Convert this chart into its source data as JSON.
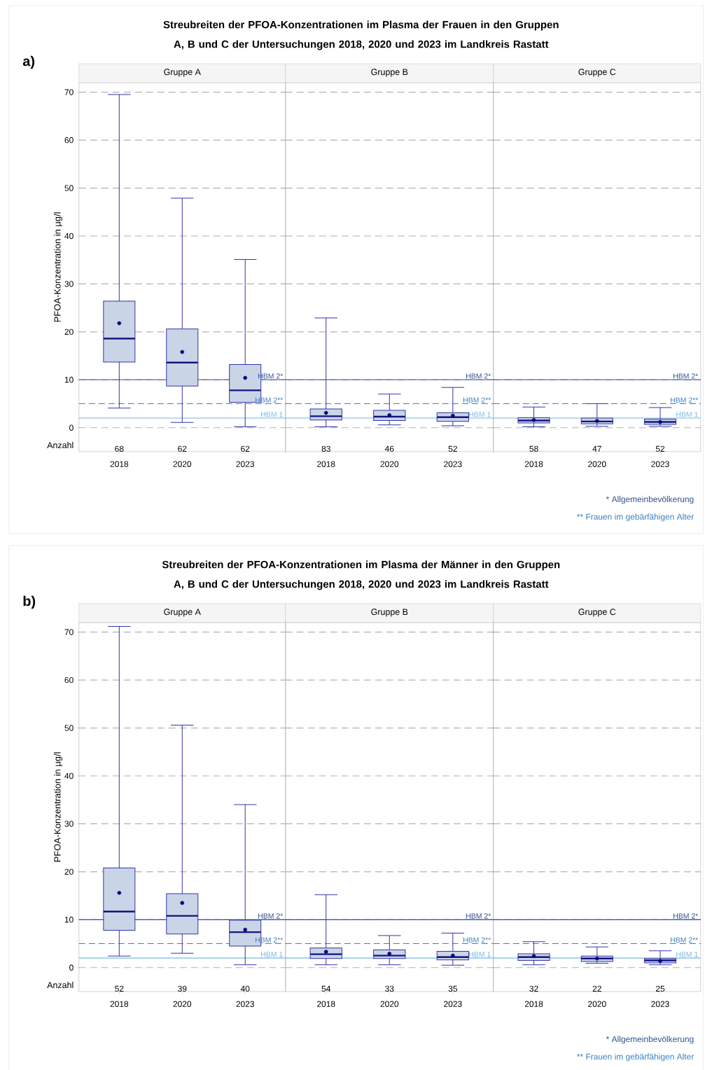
{
  "chart_data": [
    {
      "type": "box",
      "title": "Streubreiten der PFOA-Konzentrationen im Plasma der Frauen in den Gruppen A, B und C der Untersuchungen 2018, 2020 und 2023 im Landkreis Rastatt",
      "subtitle": "Gruppe A",
      "ylabel": "PFOA-Konzentration in µg/l",
      "categories": [
        "2018",
        "2020",
        "2023"
      ],
      "ylim": [
        -5,
        72
      ],
      "yticks": [
        0,
        10,
        20,
        30,
        40,
        50,
        60,
        70
      ],
      "grid": "y",
      "series": [
        {
          "color": "#3535a8",
          "boxes": [
            {
              "low": 4.1,
              "q1": 13.7,
              "median": 18.6,
              "q3": 26.4,
              "high": 69.5,
              "mean": 21.8
            },
            {
              "low": 1.1,
              "q1": 8.7,
              "median": 13.6,
              "q3": 20.6,
              "high": 47.9,
              "mean": 15.8
            },
            {
              "low": 0.2,
              "q1": 5.3,
              "median": 7.8,
              "q3": 13.2,
              "high": 35.1,
              "mean": 10.4
            }
          ]
        }
      ],
      "ref_lines": [
        {
          "axis": "y",
          "value": 10,
          "label": "HBM 2*",
          "color": "#2f4f8f",
          "line_style": "solid"
        },
        {
          "axis": "y",
          "value": 5,
          "label": "HBM 2**",
          "color": "#3a7fc0",
          "line_style": "dashed"
        },
        {
          "axis": "y",
          "value": 2,
          "label": "HBM 1",
          "color": "#7ab8e0",
          "line_style": "solid"
        }
      ],
      "annotations": [
        "a)",
        "Anzahl",
        "68",
        "62",
        "62"
      ]
    },
    {
      "type": "box",
      "subtitle": "Gruppe B",
      "categories": [
        "2018",
        "2020",
        "2023"
      ],
      "ylim": [
        -5,
        72
      ],
      "yticks": [
        0,
        10,
        20,
        30,
        40,
        50,
        60,
        70
      ],
      "grid": "y",
      "tick_labels": "x",
      "series": [
        {
          "color": "#3535a8",
          "boxes": [
            {
              "low": 0.2,
              "q1": 1.6,
              "median": 2.4,
              "q3": 3.9,
              "high": 22.9,
              "mean": 3.1
            },
            {
              "low": 0.6,
              "q1": 1.5,
              "median": 2.3,
              "q3": 3.6,
              "high": 7.0,
              "mean": 2.6
            },
            {
              "low": 0.4,
              "q1": 1.3,
              "median": 2.2,
              "q3": 3.1,
              "high": 8.4,
              "mean": 2.5
            }
          ]
        }
      ],
      "ref_lines": [
        {
          "axis": "y",
          "value": 10,
          "label": "HBM 2*",
          "color": "#2f4f8f",
          "line_style": "solid"
        },
        {
          "axis": "y",
          "value": 5,
          "label": "HBM 2**",
          "color": "#3a7fc0",
          "line_style": "dashed"
        },
        {
          "axis": "y",
          "value": 2,
          "label": "HBM 1",
          "color": "#7ab8e0",
          "line_style": "solid"
        }
      ],
      "annotations": [
        "83",
        "46",
        "52"
      ]
    },
    {
      "type": "box",
      "subtitle": "Gruppe C",
      "categories": [
        "2018",
        "2020",
        "2023"
      ],
      "ylim": [
        -5,
        72
      ],
      "yticks": [
        0,
        10,
        20,
        30,
        40,
        50,
        60,
        70
      ],
      "grid": "y",
      "tick_labels": "x",
      "series": [
        {
          "color": "#3535a8",
          "boxes": [
            {
              "low": 0.2,
              "q1": 1.0,
              "median": 1.5,
              "q3": 2.1,
              "high": 4.3,
              "mean": 1.6
            },
            {
              "low": 0.3,
              "q1": 0.8,
              "median": 1.3,
              "q3": 2.0,
              "high": 5.0,
              "mean": 1.4
            },
            {
              "low": 0.3,
              "q1": 0.7,
              "median": 1.2,
              "q3": 1.8,
              "high": 4.2,
              "mean": 1.2
            }
          ]
        }
      ],
      "ref_lines": [
        {
          "axis": "y",
          "value": 10,
          "label": "HBM 2*",
          "color": "#2f4f8f",
          "line_style": "solid"
        },
        {
          "axis": "y",
          "value": 5,
          "label": "HBM 2**",
          "color": "#3a7fc0",
          "line_style": "dashed"
        },
        {
          "axis": "y",
          "value": 2,
          "label": "HBM 1",
          "color": "#7ab8e0",
          "line_style": "solid"
        }
      ],
      "annotations": [
        "58",
        "47",
        "52",
        "* Allgemeinbevölkerung",
        "** Frauen im gebärfähigen Alter"
      ]
    },
    {
      "type": "box",
      "title": "Streubreiten der PFOA-Konzentrationen im Plasma der Männer in den Gruppen A, B und C der Untersuchungen 2018, 2020 und 2023 im Landkreis Rastatt",
      "subtitle": "Gruppe A",
      "ylabel": "PFOA-Konzentration in µg/l",
      "categories": [
        "2018",
        "2020",
        "2023"
      ],
      "ylim": [
        -5,
        72
      ],
      "yticks": [
        0,
        10,
        20,
        30,
        40,
        50,
        60,
        70
      ],
      "grid": "y",
      "series": [
        {
          "color": "#3535a8",
          "boxes": [
            {
              "low": 2.4,
              "q1": 7.8,
              "median": 11.7,
              "q3": 20.8,
              "high": 71.2,
              "mean": 15.6
            },
            {
              "low": 3.0,
              "q1": 7.0,
              "median": 10.8,
              "q3": 15.4,
              "high": 50.6,
              "mean": 13.5
            },
            {
              "low": 0.6,
              "q1": 4.5,
              "median": 7.4,
              "q3": 9.9,
              "high": 34.0,
              "mean": 7.9
            }
          ]
        }
      ],
      "ref_lines": [
        {
          "axis": "y",
          "value": 10,
          "label": "HBM 2*",
          "color": "#2f4f8f",
          "line_style": "solid"
        },
        {
          "axis": "y",
          "value": 5,
          "label": "HBM 2**",
          "color": "#3a7fc0",
          "line_style": "dashed"
        },
        {
          "axis": "y",
          "value": 2,
          "label": "HBM 1",
          "color": "#7ab8e0",
          "line_style": "solid"
        }
      ],
      "annotations": [
        "b)",
        "Anzahl",
        "52",
        "39",
        "40"
      ]
    },
    {
      "type": "box",
      "subtitle": "Gruppe B",
      "categories": [
        "2018",
        "2020",
        "2023"
      ],
      "ylim": [
        -5,
        72
      ],
      "yticks": [
        0,
        10,
        20,
        30,
        40,
        50,
        60,
        70
      ],
      "grid": "y",
      "tick_labels": "x",
      "series": [
        {
          "color": "#3535a8",
          "boxes": [
            {
              "low": 0.6,
              "q1": 1.9,
              "median": 2.8,
              "q3": 4.1,
              "high": 15.2,
              "mean": 3.3
            },
            {
              "low": 0.6,
              "q1": 1.9,
              "median": 2.5,
              "q3": 3.7,
              "high": 6.7,
              "mean": 2.9
            },
            {
              "low": 0.5,
              "q1": 1.6,
              "median": 2.2,
              "q3": 3.4,
              "high": 7.2,
              "mean": 2.5
            }
          ]
        }
      ],
      "ref_lines": [
        {
          "axis": "y",
          "value": 10,
          "label": "HBM 2*",
          "color": "#2f4f8f",
          "line_style": "solid"
        },
        {
          "axis": "y",
          "value": 5,
          "label": "HBM 2**",
          "color": "#3a7fc0",
          "line_style": "dashed"
        },
        {
          "axis": "y",
          "value": 2,
          "label": "HBM 1",
          "color": "#7ab8e0",
          "line_style": "solid"
        }
      ],
      "annotations": [
        "54",
        "33",
        "35"
      ]
    },
    {
      "type": "box",
      "subtitle": "Gruppe C",
      "categories": [
        "2018",
        "2020",
        "2023"
      ],
      "ylim": [
        -5,
        72
      ],
      "yticks": [
        0,
        10,
        20,
        30,
        40,
        50,
        60,
        70
      ],
      "grid": "y",
      "tick_labels": "x",
      "series": [
        {
          "color": "#3535a8",
          "boxes": [
            {
              "low": 0.6,
              "q1": 1.5,
              "median": 2.2,
              "q3": 2.9,
              "high": 5.4,
              "mean": 2.4
            },
            {
              "low": 0.9,
              "q1": 1.3,
              "median": 1.9,
              "q3": 2.4,
              "high": 4.3,
              "mean": 1.9
            },
            {
              "low": 0.6,
              "q1": 1.0,
              "median": 1.5,
              "q3": 1.9,
              "high": 3.5,
              "mean": 1.4
            }
          ]
        }
      ],
      "ref_lines": [
        {
          "axis": "y",
          "value": 10,
          "label": "HBM 2*",
          "color": "#2f4f8f",
          "line_style": "solid"
        },
        {
          "axis": "y",
          "value": 5,
          "label": "HBM 2**",
          "color": "#3a7fc0",
          "line_style": "dashed"
        },
        {
          "axis": "y",
          "value": 2,
          "label": "HBM 1",
          "color": "#7ab8e0",
          "line_style": "solid"
        }
      ],
      "annotations": [
        "32",
        "22",
        "25",
        "* Allgemeinbevölkerung",
        "** Frauen im gebärfähigen Alter"
      ]
    }
  ]
}
